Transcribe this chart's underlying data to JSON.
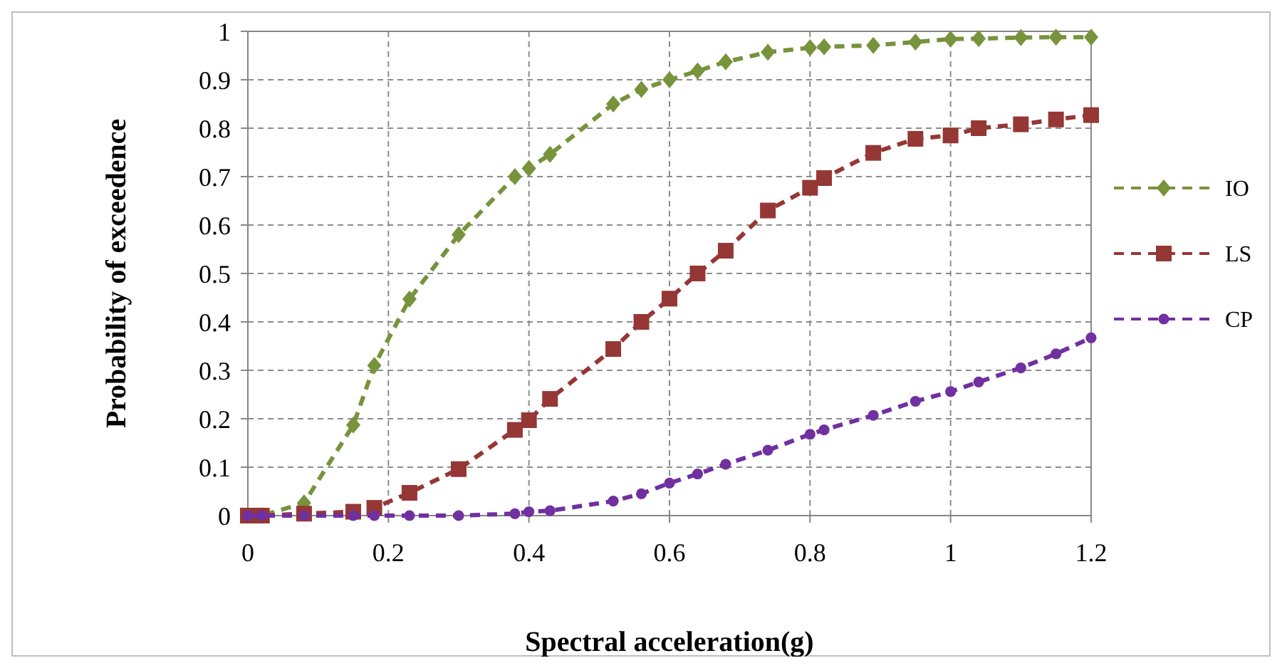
{
  "chart_data": {
    "type": "line",
    "xlabel": "Spectral acceleration(g)",
    "ylabel": "Probability of exceedence",
    "x": [
      0,
      0.02,
      0.08,
      0.15,
      0.18,
      0.23,
      0.3,
      0.38,
      0.4,
      0.43,
      0.52,
      0.56,
      0.6,
      0.64,
      0.68,
      0.74,
      0.8,
      0.82,
      0.89,
      0.95,
      1.0,
      1.04,
      1.1,
      1.15,
      1.2
    ],
    "series": [
      {
        "name": "IO",
        "color": "#77933c",
        "marker": "diamond",
        "values": [
          0,
          0,
          0.026,
          0.187,
          0.31,
          0.447,
          0.58,
          0.7,
          0.717,
          0.746,
          0.85,
          0.88,
          0.9,
          0.918,
          0.937,
          0.957,
          0.966,
          0.968,
          0.971,
          0.978,
          0.984,
          0.985,
          0.987,
          0.988,
          0.988
        ]
      },
      {
        "name": "LS",
        "color": "#953735",
        "marker": "square",
        "values": [
          0,
          0,
          0.004,
          0.008,
          0.016,
          0.047,
          0.096,
          0.177,
          0.197,
          0.241,
          0.344,
          0.4,
          0.448,
          0.5,
          0.547,
          0.63,
          0.677,
          0.697,
          0.749,
          0.778,
          0.785,
          0.8,
          0.808,
          0.818,
          0.827
        ]
      },
      {
        "name": "CP",
        "color": "#7030a0",
        "marker": "circle",
        "values": [
          0,
          0,
          0,
          0,
          0,
          0,
          0,
          0.004,
          0.008,
          0.01,
          0.03,
          0.045,
          0.067,
          0.086,
          0.106,
          0.135,
          0.168,
          0.177,
          0.207,
          0.236,
          0.256,
          0.276,
          0.305,
          0.334,
          0.367
        ]
      }
    ],
    "xlim": [
      0,
      1.2
    ],
    "xticks": [
      0,
      0.2,
      0.4,
      0.6,
      0.8,
      1,
      1.2
    ],
    "ylim": [
      0,
      1
    ],
    "yticks": [
      0,
      0.1,
      0.2,
      0.3,
      0.4,
      0.5,
      0.6,
      0.7,
      0.8,
      0.9,
      1
    ],
    "grid": true,
    "legend": "right",
    "line_style": "dashed"
  }
}
